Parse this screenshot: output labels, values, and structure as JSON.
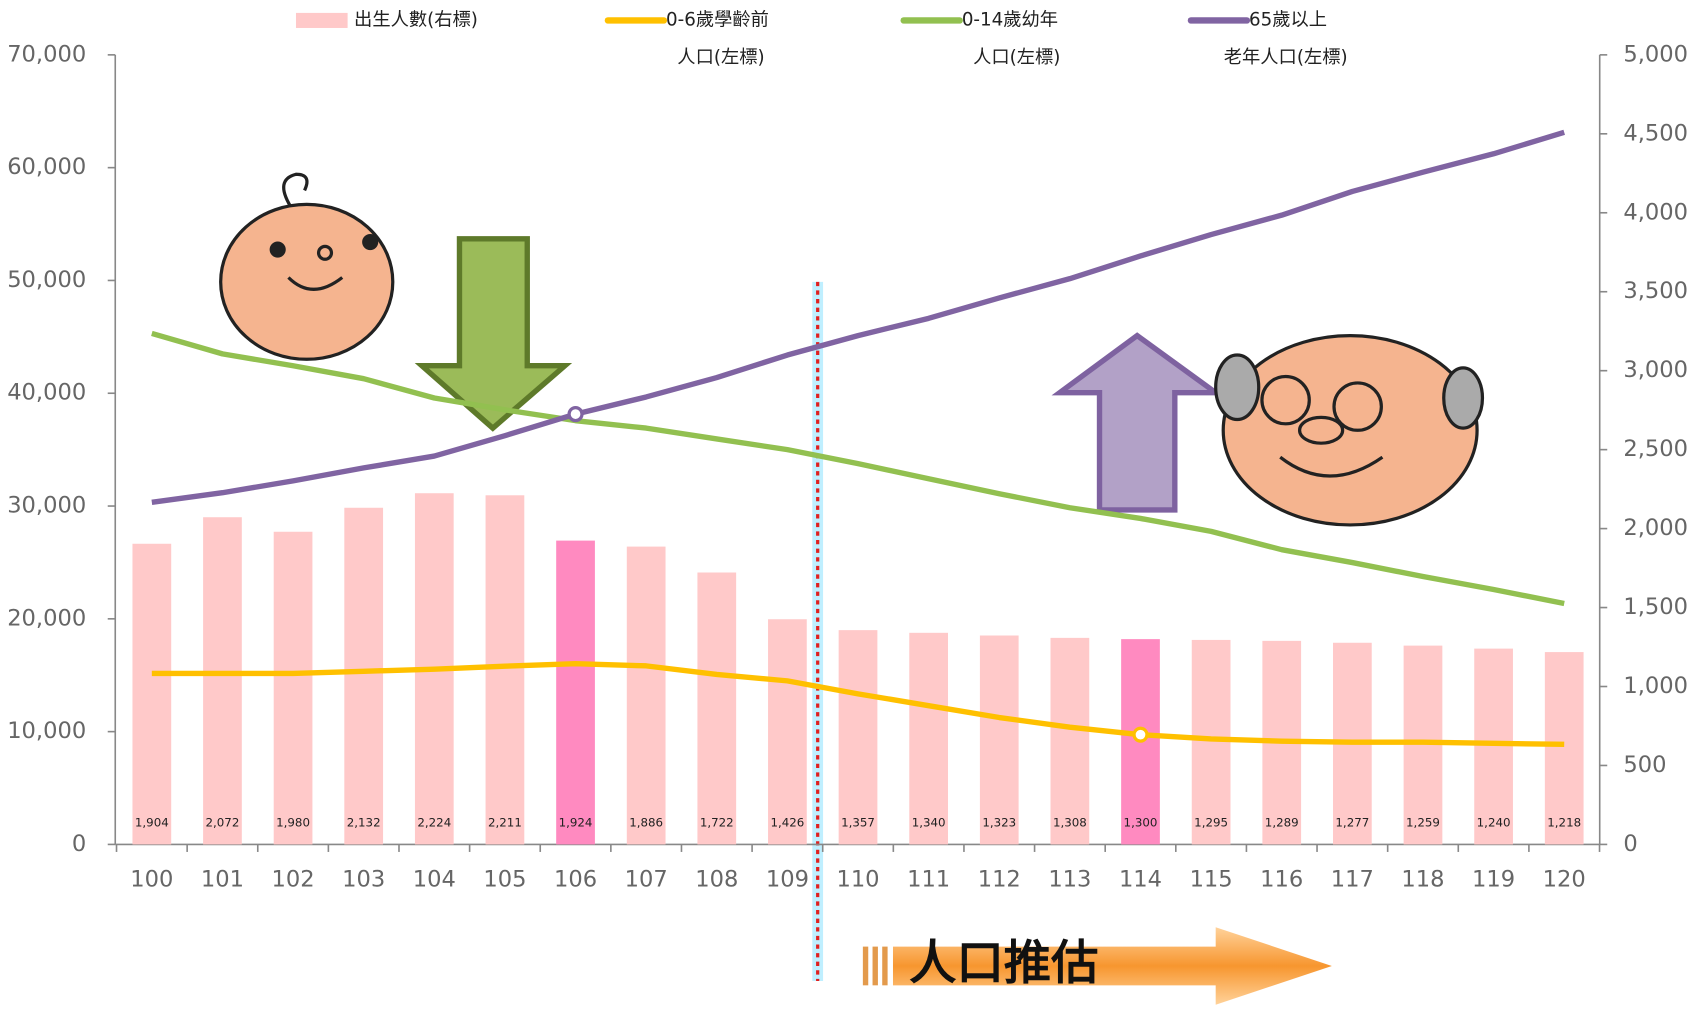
{
  "chart_data": {
    "type": "bar-line",
    "categories": [
      "100",
      "101",
      "102",
      "103",
      "104",
      "105",
      "106",
      "107",
      "108",
      "109",
      "110",
      "111",
      "112",
      "113",
      "114",
      "115",
      "116",
      "117",
      "118",
      "119",
      "120"
    ],
    "series": [
      {
        "name": "出生人數(右標)",
        "type": "bar",
        "axis": "y2",
        "color": "#ffc9c9",
        "colors": [
          "#ffc9c9",
          "#ffc9c9",
          "#ffc9c9",
          "#ffc9c9",
          "#ffc9c9",
          "#ffc9c9",
          "#ff8ac0",
          "#ffc9c9",
          "#ffc9c9",
          "#ffc9c9",
          "#ffc9c9",
          "#ffc9c9",
          "#ffc9c9",
          "#ffc9c9",
          "#ff8ac0",
          "#ffc9c9",
          "#ffc9c9",
          "#ffc9c9",
          "#ffc9c9",
          "#ffc9c9",
          "#ffc9c9"
        ],
        "values": [
          1904,
          2072,
          1980,
          2132,
          2224,
          2211,
          1924,
          1886,
          1722,
          1426,
          1357,
          1340,
          1323,
          1308,
          1300,
          1295,
          1289,
          1277,
          1259,
          1240,
          1218
        ],
        "value_labels": [
          "1,904",
          "2,072",
          "1,980",
          "2,132",
          "2,224",
          "2,211",
          "1,924",
          "1,886",
          "1,722",
          "1,426",
          "1,357",
          "1,340",
          "1,323",
          "1,308",
          "1,300",
          "1,295",
          "1,289",
          "1,277",
          "1,259",
          "1,240",
          "1,218"
        ]
      },
      {
        "name": "0-6歲學齡前\n人口(左標)",
        "type": "line",
        "color": "#ffc000",
        "values": [
          15160,
          15160,
          15160,
          15350,
          15540,
          15800,
          16020,
          15830,
          15070,
          14500,
          13350,
          12300,
          11250,
          10390,
          9730,
          9350,
          9150,
          9060,
          9060,
          8960,
          8870
        ]
      },
      {
        "name": "0-14歲幼年\n人口(左標)",
        "type": "line",
        "color": "#92c050",
        "values": [
          45300,
          43490,
          42440,
          41290,
          39580,
          38530,
          37570,
          36910,
          35950,
          35000,
          33760,
          32420,
          31090,
          29850,
          28900,
          27750,
          26130,
          24990,
          23750,
          22600,
          21360
        ]
      },
      {
        "name": "65歲以上\n老年人口(左標)",
        "type": "line",
        "color": "#8064a2",
        "values": [
          30330,
          31180,
          32230,
          33380,
          34430,
          36240,
          38150,
          39670,
          41390,
          43390,
          45110,
          46640,
          48450,
          50160,
          52170,
          54070,
          55790,
          57890,
          59600,
          61230,
          63130
        ]
      }
    ],
    "ylim": [
      0,
      70000
    ],
    "yticks": [
      0,
      {
        "value": 10000,
        "label": "10,000"
      },
      {
        "value": 20000,
        "label": "20,000"
      },
      {
        "value": 30000,
        "label": "30,000"
      },
      {
        "value": 40000,
        "label": "40,000"
      },
      {
        "value": 50000,
        "label": "50,000"
      },
      {
        "value": 60000,
        "label": "60,000"
      },
      {
        "value": 70000,
        "label": "70,000"
      }
    ],
    "y2lim": [
      0,
      5000
    ],
    "y2ticks": [
      0,
      500,
      {
        "value": 1000,
        "label": "1,000"
      },
      {
        "value": 1500,
        "label": "1,500"
      },
      {
        "value": 2000,
        "label": "2,000"
      },
      {
        "value": 2500,
        "label": "2,500"
      },
      {
        "value": 3000,
        "label": "3,000"
      },
      {
        "value": 3500,
        "label": "3,500"
      },
      {
        "value": 4000,
        "label": "4,000"
      },
      {
        "value": 4500,
        "label": "4,500"
      },
      {
        "value": 5000,
        "label": "5,000"
      }
    ],
    "annotation": "人口推估",
    "grid": false
  }
}
